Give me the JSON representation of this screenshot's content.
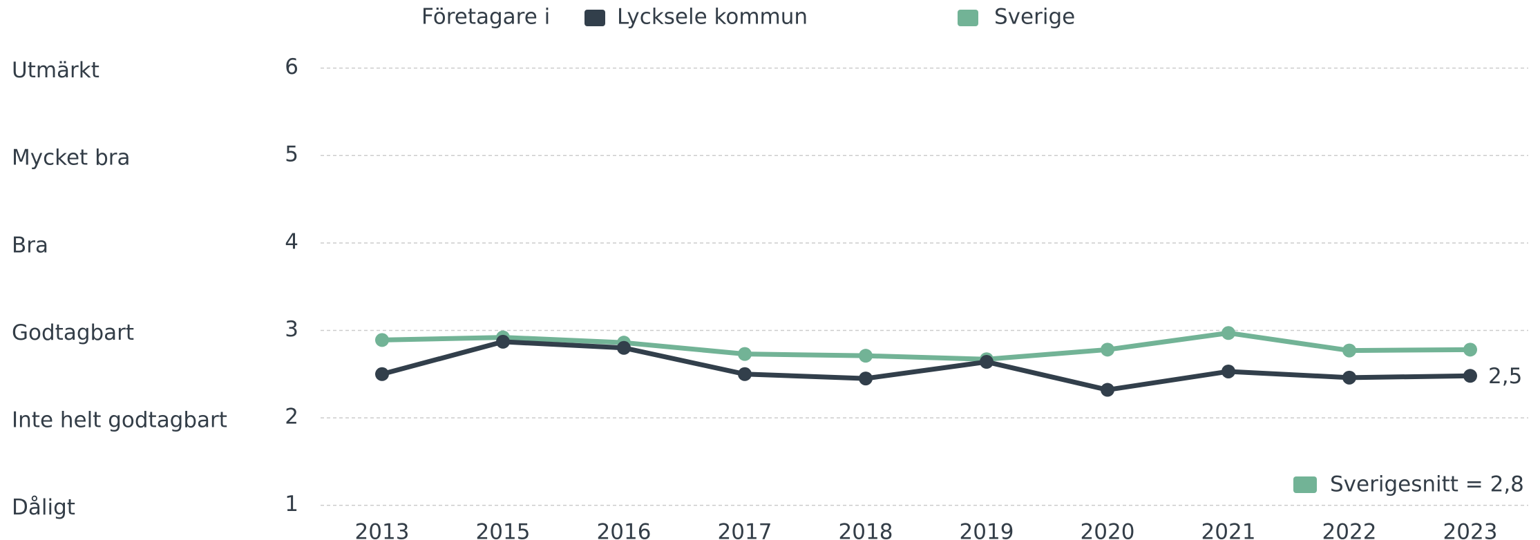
{
  "chart_data": {
    "type": "line",
    "legend_title": "Företagare i",
    "categories": [
      "2013",
      "2015",
      "2016",
      "2017",
      "2018",
      "2019",
      "2020",
      "2021",
      "2022",
      "2023"
    ],
    "series": [
      {
        "name": "Lycksele kommun",
        "color": "#323f4b",
        "values": [
          2.5,
          2.87,
          2.8,
          2.5,
          2.45,
          2.64,
          2.32,
          2.53,
          2.46,
          2.48
        ],
        "value_labels": [
          null,
          null,
          null,
          null,
          null,
          null,
          null,
          null,
          null,
          "2,5"
        ]
      },
      {
        "name": "Sverige",
        "color": "#72b396",
        "values": [
          2.89,
          2.92,
          2.86,
          2.73,
          2.71,
          2.67,
          2.78,
          2.97,
          2.77,
          2.78
        ]
      }
    ],
    "ylim": [
      1,
      6
    ],
    "yticks": [
      1,
      2,
      3,
      4,
      5,
      6
    ],
    "ytick_names": [
      "Dåligt",
      "Inte helt godtagbart",
      "Godtagbart",
      "Bra",
      "Mycket bra",
      "Utmärkt"
    ],
    "annotation": "Sverigesnitt = 2,8",
    "grid": true
  }
}
